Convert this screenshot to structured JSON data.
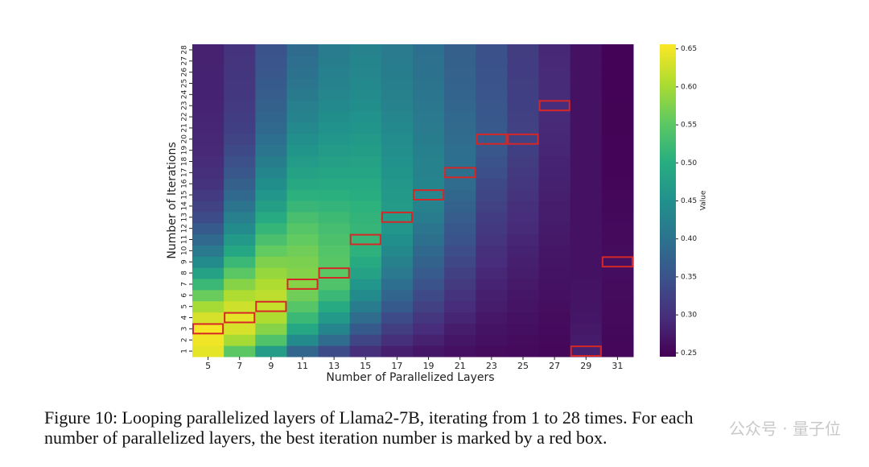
{
  "chart_data": {
    "type": "heatmap",
    "xlabel": "Number of Parallelized Layers",
    "ylabel": "Number of Iterations",
    "categories": [
      5,
      7,
      9,
      11,
      13,
      15,
      17,
      19,
      21,
      23,
      25,
      27,
      29,
      31
    ],
    "y_categories": [
      1,
      2,
      3,
      4,
      5,
      6,
      7,
      8,
      9,
      10,
      11,
      12,
      13,
      14,
      15,
      16,
      17,
      18,
      19,
      20,
      21,
      22,
      23,
      24,
      25,
      26,
      27,
      28
    ],
    "values": [
      [
        0.64,
        0.648,
        0.652,
        0.63,
        0.6,
        0.56,
        0.52,
        0.48,
        0.44,
        0.41,
        0.385,
        0.36,
        0.34,
        0.325,
        0.315,
        0.305,
        0.3,
        0.295,
        0.292,
        0.29,
        0.288,
        0.287,
        0.286,
        0.285,
        0.284,
        0.284,
        0.283,
        0.283
      ],
      [
        0.55,
        0.6,
        0.63,
        0.64,
        0.625,
        0.605,
        0.58,
        0.55,
        0.52,
        0.49,
        0.465,
        0.44,
        0.42,
        0.4,
        0.385,
        0.37,
        0.355,
        0.345,
        0.335,
        0.328,
        0.322,
        0.318,
        0.315,
        0.312,
        0.31,
        0.308,
        0.306,
        0.305
      ],
      [
        0.47,
        0.54,
        0.58,
        0.605,
        0.62,
        0.615,
        0.605,
        0.59,
        0.575,
        0.555,
        0.535,
        0.515,
        0.495,
        0.475,
        0.46,
        0.445,
        0.43,
        0.418,
        0.405,
        0.395,
        0.385,
        0.378,
        0.372,
        0.366,
        0.36,
        0.356,
        0.352,
        0.35
      ],
      [
        0.38,
        0.44,
        0.49,
        0.52,
        0.545,
        0.565,
        0.58,
        0.578,
        0.572,
        0.565,
        0.555,
        0.545,
        0.532,
        0.518,
        0.505,
        0.492,
        0.48,
        0.468,
        0.457,
        0.447,
        0.437,
        0.428,
        0.42,
        0.412,
        0.405,
        0.398,
        0.392,
        0.388
      ],
      [
        0.34,
        0.39,
        0.43,
        0.465,
        0.495,
        0.52,
        0.54,
        0.55,
        0.548,
        0.543,
        0.537,
        0.53,
        0.522,
        0.513,
        0.504,
        0.495,
        0.486,
        0.477,
        0.468,
        0.46,
        0.452,
        0.445,
        0.438,
        0.432,
        0.427,
        0.422,
        0.418,
        0.415
      ],
      [
        0.3,
        0.33,
        0.36,
        0.39,
        0.415,
        0.44,
        0.46,
        0.478,
        0.495,
        0.508,
        0.518,
        0.516,
        0.512,
        0.507,
        0.5,
        0.493,
        0.486,
        0.479,
        0.472,
        0.465,
        0.458,
        0.452,
        0.446,
        0.441,
        0.437,
        0.433,
        0.43,
        0.428
      ],
      [
        0.28,
        0.3,
        0.32,
        0.34,
        0.36,
        0.378,
        0.395,
        0.41,
        0.424,
        0.437,
        0.449,
        0.46,
        0.47,
        0.468,
        0.465,
        0.461,
        0.457,
        0.452,
        0.447,
        0.442,
        0.437,
        0.432,
        0.428,
        0.424,
        0.421,
        0.418,
        0.416,
        0.414
      ],
      [
        0.27,
        0.283,
        0.296,
        0.31,
        0.324,
        0.337,
        0.35,
        0.362,
        0.374,
        0.385,
        0.396,
        0.406,
        0.416,
        0.425,
        0.433,
        0.431,
        0.428,
        0.425,
        0.422,
        0.418,
        0.414,
        0.41,
        0.407,
        0.404,
        0.401,
        0.399,
        0.397,
        0.395
      ],
      [
        0.262,
        0.27,
        0.278,
        0.287,
        0.296,
        0.305,
        0.314,
        0.323,
        0.332,
        0.341,
        0.35,
        0.358,
        0.366,
        0.374,
        0.382,
        0.389,
        0.396,
        0.394,
        0.392,
        0.389,
        0.386,
        0.383,
        0.38,
        0.377,
        0.375,
        0.373,
        0.371,
        0.37
      ],
      [
        0.258,
        0.262,
        0.266,
        0.271,
        0.276,
        0.281,
        0.286,
        0.291,
        0.296,
        0.301,
        0.307,
        0.313,
        0.319,
        0.325,
        0.331,
        0.337,
        0.343,
        0.349,
        0.355,
        0.36,
        0.359,
        0.357,
        0.355,
        0.353,
        0.351,
        0.349,
        0.347,
        0.346
      ],
      [
        0.255,
        0.258,
        0.261,
        0.264,
        0.267,
        0.27,
        0.273,
        0.277,
        0.281,
        0.285,
        0.289,
        0.293,
        0.297,
        0.301,
        0.305,
        0.309,
        0.313,
        0.317,
        0.321,
        0.325,
        0.324,
        0.323,
        0.322,
        0.321,
        0.32,
        0.319,
        0.318,
        0.317
      ],
      [
        0.252,
        0.254,
        0.256,
        0.258,
        0.26,
        0.262,
        0.264,
        0.266,
        0.268,
        0.27,
        0.272,
        0.274,
        0.276,
        0.278,
        0.28,
        0.282,
        0.284,
        0.286,
        0.288,
        0.29,
        0.292,
        0.294,
        0.296,
        0.295,
        0.294,
        0.293,
        0.292,
        0.291
      ],
      [
        0.282,
        0.275,
        0.272,
        0.27,
        0.268,
        0.267,
        0.266,
        0.265,
        0.265,
        0.264,
        0.264,
        0.264,
        0.264,
        0.264,
        0.264,
        0.264,
        0.264,
        0.264,
        0.264,
        0.264,
        0.264,
        0.264,
        0.264,
        0.264,
        0.264,
        0.264,
        0.264,
        0.264
      ],
      [
        0.252,
        0.253,
        0.254,
        0.255,
        0.256,
        0.257,
        0.258,
        0.259,
        0.262,
        0.258,
        0.256,
        0.255,
        0.254,
        0.253,
        0.252,
        0.251,
        0.25,
        0.25,
        0.249,
        0.249,
        0.248,
        0.248,
        0.248,
        0.247,
        0.247,
        0.247,
        0.247,
        0.247
      ]
    ],
    "best_iterations": [
      3,
      4,
      5,
      7,
      8,
      11,
      13,
      15,
      17,
      20,
      20,
      23,
      1,
      9
    ],
    "box_color": "#d62728",
    "colormap": "viridis",
    "colorbar_label": "Value",
    "zlim": [
      0.245,
      0.656
    ],
    "zticks": [
      0.25,
      {
        "value": 0.3,
        "label": "0.30"
      },
      0.35,
      {
        "value": 0.4,
        "label": "0.40"
      },
      0.45,
      {
        "value": 0.5,
        "label": "0.50"
      },
      0.55,
      {
        "value": 0.6,
        "label": "0.60"
      },
      0.65
    ]
  },
  "caption": [
    "Figure 10: Looping parallelized layers of Llama2-7B, iterating from 1 to 28 times. For each",
    "number of parallelized layers, the best iteration number is marked by a red box."
  ],
  "watermark": "公众号 · 量子位"
}
